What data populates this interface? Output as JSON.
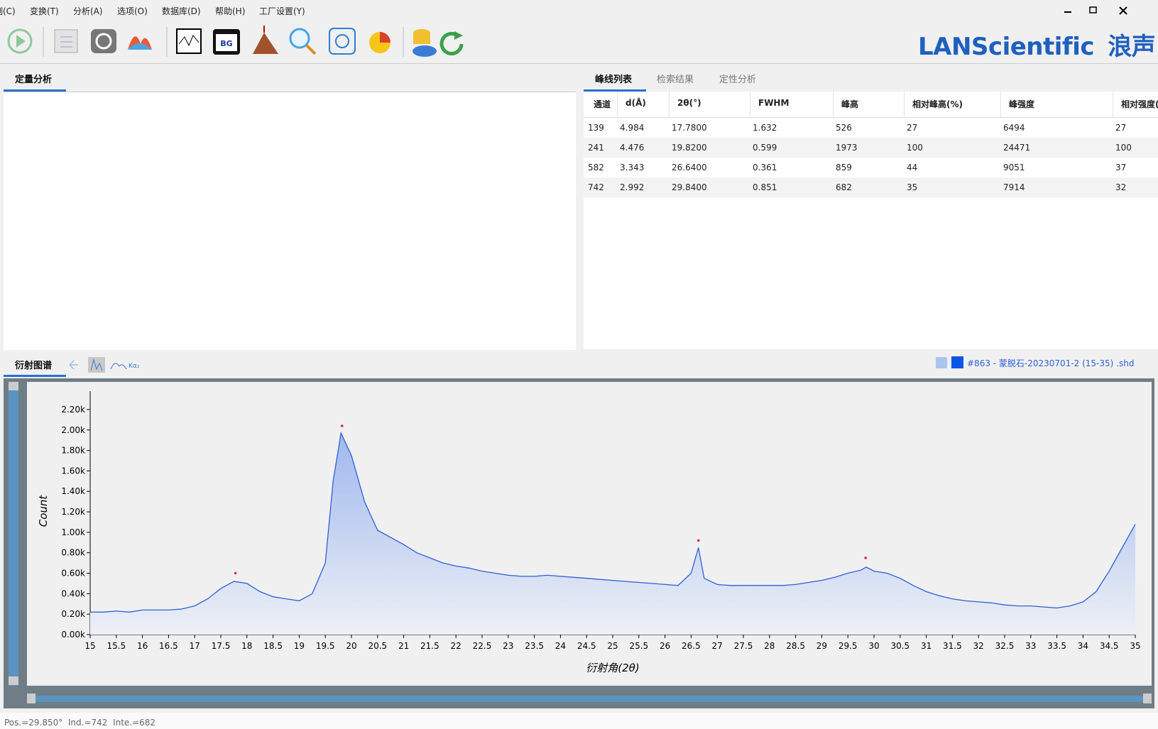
{
  "menu": [
    "制(C)",
    "变换(T)",
    "分析(A)",
    "选项(O)",
    "数据库(D)",
    "帮助(H)",
    "工厂设置(Y)"
  ],
  "toolbar": {
    "bg_icon": "BG"
  },
  "brand": {
    "name": "LANScientific",
    "cn": "浪声"
  },
  "left_panel": {
    "tab": "定量分析"
  },
  "right_panel": {
    "tabs": [
      "峰线列表",
      "检索结果",
      "定性分析"
    ],
    "table": {
      "columns": [
        "通道",
        "d(Å)",
        "2θ(°)",
        "FWHM",
        "峰高",
        "相对峰高(%)",
        "峰强度",
        "相对强度("
      ],
      "rows": [
        [
          "139",
          "4.984",
          "17.7800",
          "1.632",
          "526",
          "27",
          "6494",
          "27"
        ],
        [
          "241",
          "4.476",
          "19.8200",
          "0.599",
          "1973",
          "100",
          "24471",
          "100"
        ],
        [
          "582",
          "3.343",
          "26.6400",
          "0.361",
          "859",
          "44",
          "9051",
          "37"
        ],
        [
          "742",
          "2.992",
          "29.8400",
          "0.851",
          "682",
          "35",
          "7914",
          "32"
        ]
      ]
    }
  },
  "chart_section": {
    "tab": "衍射图谱",
    "tool_label": "Kα₂"
  },
  "status": "Pos.=29.850°  Ind.=742  Inte.=682",
  "chart_data": {
    "type": "line",
    "xlabel": "衍射角(2θ)",
    "ylabel": "Count",
    "xlim": [
      15,
      35
    ],
    "ylim": [
      0,
      2380
    ],
    "xticks": [
      15,
      15.5,
      16,
      16.5,
      17,
      17.5,
      18,
      18.5,
      19,
      19.5,
      20,
      20.5,
      21,
      21.5,
      22,
      22.5,
      23,
      23.5,
      24,
      24.5,
      25,
      25.5,
      26,
      26.5,
      27,
      27.5,
      28,
      28.5,
      29,
      29.5,
      30,
      30.5,
      31,
      31.5,
      32,
      32.5,
      33,
      33.5,
      34,
      34.5,
      35
    ],
    "yticks": [
      {
        "value": 0,
        "label": "0.00k"
      },
      {
        "value": 200,
        "label": "0.20k"
      },
      {
        "value": 400,
        "label": "0.40k"
      },
      {
        "value": 600,
        "label": "0.60k"
      },
      {
        "value": 800,
        "label": "0.80k"
      },
      {
        "value": 1000,
        "label": "1.00k"
      },
      {
        "value": 1200,
        "label": "1.20k"
      },
      {
        "value": 1400,
        "label": "1.40k"
      },
      {
        "value": 1600,
        "label": "1.60k"
      },
      {
        "value": 1800,
        "label": "1.80k"
      },
      {
        "value": 2000,
        "label": "2.00k"
      },
      {
        "value": 2200,
        "label": "2.20k"
      }
    ],
    "series": [
      {
        "name": "#863 - 蒙脱石-20230701-2 (15-35) .shd",
        "color": "#2f5fd6",
        "x": [
          15,
          15.25,
          15.5,
          15.75,
          16,
          16.25,
          16.5,
          16.75,
          17,
          17.25,
          17.5,
          17.75,
          18,
          18.25,
          18.5,
          18.75,
          19,
          19.25,
          19.5,
          19.65,
          19.8,
          20,
          20.25,
          20.5,
          20.75,
          21,
          21.25,
          21.5,
          21.75,
          22,
          22.25,
          22.5,
          22.75,
          23,
          23.25,
          23.5,
          23.75,
          24,
          24.25,
          24.5,
          24.75,
          25,
          25.25,
          25.5,
          25.75,
          26,
          26.25,
          26.5,
          26.64,
          26.75,
          27,
          27.25,
          27.5,
          27.75,
          28,
          28.25,
          28.5,
          28.75,
          29,
          29.25,
          29.5,
          29.75,
          29.85,
          30,
          30.25,
          30.5,
          30.75,
          31,
          31.25,
          31.5,
          31.75,
          32,
          32.25,
          32.5,
          32.75,
          33,
          33.25,
          33.5,
          33.75,
          34,
          34.25,
          34.5,
          34.75,
          35
        ],
        "values": [
          220,
          220,
          230,
          220,
          240,
          240,
          240,
          250,
          280,
          350,
          450,
          520,
          500,
          420,
          370,
          350,
          330,
          400,
          700,
          1500,
          1970,
          1750,
          1300,
          1020,
          950,
          880,
          800,
          750,
          700,
          670,
          650,
          620,
          600,
          580,
          570,
          570,
          580,
          570,
          560,
          550,
          540,
          530,
          520,
          510,
          500,
          490,
          480,
          600,
          850,
          550,
          490,
          480,
          480,
          480,
          480,
          480,
          490,
          510,
          530,
          560,
          600,
          630,
          660,
          620,
          600,
          550,
          480,
          420,
          380,
          350,
          330,
          320,
          310,
          290,
          280,
          280,
          270,
          260,
          280,
          320,
          420,
          620,
          850,
          1080
        ]
      },
      {
        "name": "peaks",
        "color": "#e0204a",
        "x": [
          17.78,
          19.82,
          26.64,
          29.84
        ],
        "values": [
          600,
          2040,
          920,
          750
        ]
      }
    ]
  }
}
